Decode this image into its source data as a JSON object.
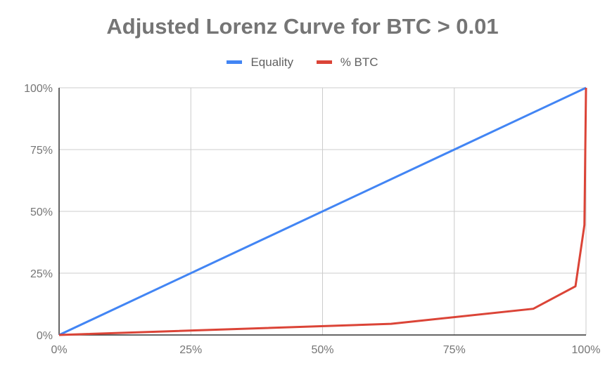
{
  "chart_data": {
    "type": "line",
    "title": "Adjusted Lorenz Curve for BTC > 0.01",
    "xlabel": "",
    "ylabel": "",
    "xlim": [
      0,
      100
    ],
    "ylim": [
      0,
      100
    ],
    "x_ticks": [
      "0%",
      "25%",
      "50%",
      "75%",
      "100%"
    ],
    "y_ticks": [
      "0%",
      "25%",
      "50%",
      "75%",
      "100%"
    ],
    "grid": true,
    "legend_position": "top",
    "series": [
      {
        "name": "Equality",
        "color": "#4285f4",
        "x": [
          0,
          100
        ],
        "y": [
          0,
          100
        ]
      },
      {
        "name": "% BTC",
        "color": "#db4437",
        "x": [
          0,
          63,
          90,
          98,
          99.7,
          100
        ],
        "y": [
          0,
          4.5,
          10.6,
          19.7,
          44.5,
          100
        ]
      }
    ]
  }
}
